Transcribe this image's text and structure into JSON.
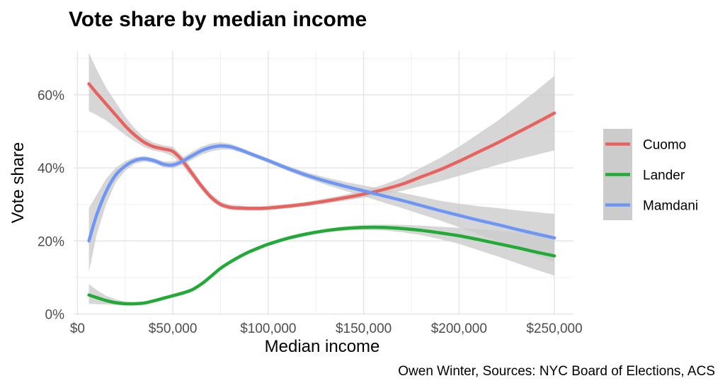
{
  "chart_data": {
    "type": "line",
    "title": "Vote share by median income",
    "xlabel": "Median income",
    "ylabel": "Vote share",
    "caption": "Owen Winter, Sources: NYC Board of Elections, ACS",
    "xlim": [
      -2000,
      260000
    ],
    "ylim": [
      -0.003,
      0.72
    ],
    "x_ticks": [
      0,
      50000,
      100000,
      150000,
      200000,
      250000
    ],
    "x_tick_labels": [
      "$0",
      "$50,000",
      "$100,000",
      "$150,000",
      "$200,000",
      "$250,000"
    ],
    "y_ticks": [
      0,
      0.2,
      0.4,
      0.6
    ],
    "y_tick_labels": [
      "0%",
      "20%",
      "40%",
      "60%"
    ],
    "grid": true,
    "legend_position": "right",
    "ribbon_color": "#cccccc",
    "series": [
      {
        "name": "Cuomo",
        "color": "#e8625f",
        "x": [
          6000,
          10000,
          15000,
          20000,
          25000,
          30000,
          35000,
          40000,
          45000,
          50000,
          55000,
          60000,
          65000,
          70000,
          75000,
          80000,
          85000,
          90000,
          95000,
          100000,
          110000,
          120000,
          130000,
          140000,
          150000,
          160000,
          170000,
          180000,
          190000,
          200000,
          210000,
          220000,
          230000,
          240000,
          250000
        ],
        "y": [
          0.63,
          0.605,
          0.575,
          0.545,
          0.515,
          0.49,
          0.47,
          0.458,
          0.452,
          0.445,
          0.42,
          0.385,
          0.35,
          0.32,
          0.3,
          0.292,
          0.29,
          0.289,
          0.289,
          0.29,
          0.295,
          0.301,
          0.309,
          0.318,
          0.328,
          0.34,
          0.355,
          0.375,
          0.395,
          0.418,
          0.443,
          0.468,
          0.495,
          0.522,
          0.55
        ],
        "lower": [
          0.555,
          0.545,
          0.53,
          0.51,
          0.49,
          0.472,
          0.457,
          0.447,
          0.442,
          0.432,
          0.407,
          0.373,
          0.34,
          0.311,
          0.292,
          0.285,
          0.283,
          0.283,
          0.283,
          0.284,
          0.289,
          0.295,
          0.302,
          0.31,
          0.318,
          0.327,
          0.337,
          0.35,
          0.363,
          0.378,
          0.393,
          0.408,
          0.422,
          0.435,
          0.448
        ],
        "upper": [
          0.715,
          0.67,
          0.62,
          0.58,
          0.54,
          0.508,
          0.483,
          0.469,
          0.462,
          0.458,
          0.433,
          0.397,
          0.36,
          0.329,
          0.308,
          0.299,
          0.297,
          0.295,
          0.295,
          0.296,
          0.301,
          0.307,
          0.316,
          0.326,
          0.338,
          0.353,
          0.373,
          0.4,
          0.427,
          0.458,
          0.493,
          0.528,
          0.568,
          0.609,
          0.652
        ]
      },
      {
        "name": "Lander",
        "color": "#22aa36",
        "x": [
          6000,
          10000,
          15000,
          20000,
          25000,
          30000,
          35000,
          40000,
          45000,
          50000,
          55000,
          60000,
          65000,
          70000,
          75000,
          80000,
          85000,
          90000,
          95000,
          100000,
          110000,
          120000,
          130000,
          140000,
          150000,
          160000,
          170000,
          180000,
          190000,
          200000,
          210000,
          220000,
          230000,
          240000,
          250000
        ],
        "y": [
          0.052,
          0.045,
          0.037,
          0.031,
          0.028,
          0.028,
          0.03,
          0.036,
          0.043,
          0.05,
          0.057,
          0.066,
          0.082,
          0.103,
          0.125,
          0.142,
          0.157,
          0.17,
          0.181,
          0.191,
          0.207,
          0.219,
          0.228,
          0.234,
          0.237,
          0.237,
          0.234,
          0.229,
          0.222,
          0.214,
          0.204,
          0.193,
          0.182,
          0.17,
          0.159
        ],
        "lower": [
          0.028,
          0.027,
          0.026,
          0.025,
          0.024,
          0.024,
          0.026,
          0.032,
          0.038,
          0.045,
          0.052,
          0.061,
          0.077,
          0.098,
          0.12,
          0.137,
          0.152,
          0.165,
          0.176,
          0.186,
          0.202,
          0.214,
          0.223,
          0.228,
          0.23,
          0.229,
          0.224,
          0.216,
          0.205,
          0.192,
          0.175,
          0.158,
          0.14,
          0.122,
          0.105
        ],
        "upper": [
          0.082,
          0.066,
          0.05,
          0.04,
          0.034,
          0.032,
          0.034,
          0.04,
          0.048,
          0.055,
          0.062,
          0.071,
          0.087,
          0.108,
          0.13,
          0.147,
          0.162,
          0.175,
          0.186,
          0.196,
          0.212,
          0.224,
          0.233,
          0.24,
          0.244,
          0.245,
          0.244,
          0.242,
          0.239,
          0.236,
          0.233,
          0.228,
          0.224,
          0.219,
          0.213
        ]
      },
      {
        "name": "Mamdani",
        "color": "#6e96f5",
        "x": [
          6000,
          10000,
          15000,
          20000,
          25000,
          30000,
          35000,
          40000,
          45000,
          50000,
          55000,
          60000,
          65000,
          70000,
          75000,
          80000,
          85000,
          90000,
          95000,
          100000,
          110000,
          120000,
          130000,
          140000,
          150000,
          160000,
          170000,
          180000,
          190000,
          200000,
          210000,
          220000,
          230000,
          240000,
          250000
        ],
        "y": [
          0.2,
          0.27,
          0.335,
          0.38,
          0.405,
          0.42,
          0.425,
          0.42,
          0.41,
          0.408,
          0.418,
          0.433,
          0.447,
          0.456,
          0.46,
          0.458,
          0.45,
          0.44,
          0.43,
          0.42,
          0.399,
          0.38,
          0.364,
          0.35,
          0.337,
          0.324,
          0.311,
          0.297,
          0.283,
          0.27,
          0.257,
          0.245,
          0.232,
          0.22,
          0.208
        ],
        "lower": [
          0.115,
          0.215,
          0.3,
          0.36,
          0.392,
          0.411,
          0.417,
          0.413,
          0.402,
          0.399,
          0.408,
          0.422,
          0.436,
          0.445,
          0.45,
          0.45,
          0.443,
          0.434,
          0.424,
          0.414,
          0.392,
          0.372,
          0.354,
          0.338,
          0.322,
          0.306,
          0.29,
          0.273,
          0.256,
          0.238,
          0.219,
          0.2,
          0.181,
          0.162,
          0.142
        ],
        "upper": [
          0.29,
          0.325,
          0.37,
          0.4,
          0.418,
          0.429,
          0.433,
          0.427,
          0.418,
          0.417,
          0.428,
          0.444,
          0.458,
          0.467,
          0.47,
          0.466,
          0.457,
          0.446,
          0.436,
          0.426,
          0.406,
          0.388,
          0.374,
          0.362,
          0.352,
          0.342,
          0.332,
          0.321,
          0.31,
          0.302,
          0.295,
          0.29,
          0.284,
          0.279,
          0.274
        ]
      }
    ]
  }
}
